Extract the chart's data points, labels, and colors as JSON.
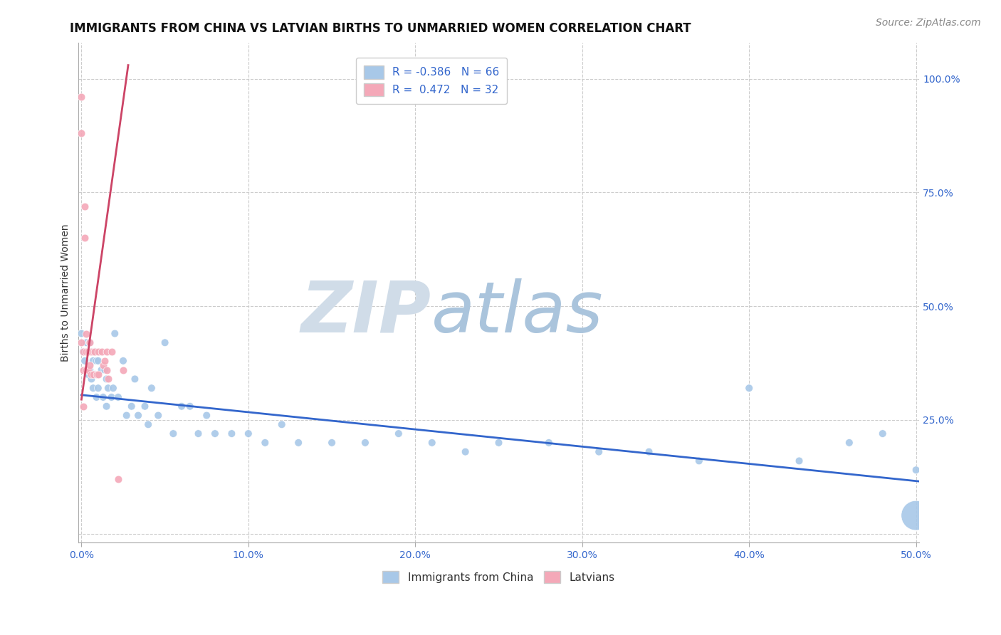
{
  "title": "IMMIGRANTS FROM CHINA VS LATVIAN BIRTHS TO UNMARRIED WOMEN CORRELATION CHART",
  "source_text": "Source: ZipAtlas.com",
  "ylabel": "Births to Unmarried Women",
  "xlim": [
    -0.002,
    0.502
  ],
  "ylim": [
    -0.02,
    1.08
  ],
  "xticks": [
    0.0,
    0.1,
    0.2,
    0.3,
    0.4,
    0.5
  ],
  "xticklabels": [
    "0.0%",
    "10.0%",
    "20.0%",
    "30.0%",
    "40.0%",
    "50.0%"
  ],
  "yticks": [
    0.0,
    0.25,
    0.5,
    0.75,
    1.0
  ],
  "yticklabels_right": [
    "",
    "25.0%",
    "50.0%",
    "75.0%",
    "100.0%"
  ],
  "blue_R": -0.386,
  "blue_N": 66,
  "pink_R": 0.472,
  "pink_N": 32,
  "blue_color": "#a8c8e8",
  "pink_color": "#f4a8b8",
  "blue_line_color": "#3366cc",
  "pink_line_color": "#cc4466",
  "watermark_zip": "ZIP",
  "watermark_atlas": "atlas",
  "watermark_zip_color": "#d0dce8",
  "watermark_atlas_color": "#aac4dc",
  "grid_color": "#cccccc",
  "background_color": "#ffffff",
  "title_fontsize": 12,
  "axis_label_fontsize": 10,
  "tick_fontsize": 10,
  "legend_fontsize": 11,
  "source_fontsize": 10,
  "blue_trend_x": [
    0.0,
    0.502
  ],
  "blue_trend_y": [
    0.305,
    0.115
  ],
  "pink_trend_x": [
    0.0,
    0.028
  ],
  "pink_trend_y": [
    0.295,
    1.03
  ],
  "blue_scatter_x": [
    0.0,
    0.001,
    0.002,
    0.003,
    0.003,
    0.004,
    0.004,
    0.005,
    0.005,
    0.006,
    0.006,
    0.007,
    0.007,
    0.008,
    0.008,
    0.009,
    0.009,
    0.01,
    0.01,
    0.012,
    0.013,
    0.014,
    0.015,
    0.015,
    0.016,
    0.018,
    0.019,
    0.02,
    0.022,
    0.025,
    0.027,
    0.03,
    0.032,
    0.034,
    0.038,
    0.04,
    0.042,
    0.046,
    0.05,
    0.055,
    0.06,
    0.065,
    0.07,
    0.075,
    0.08,
    0.09,
    0.1,
    0.11,
    0.12,
    0.13,
    0.15,
    0.17,
    0.19,
    0.21,
    0.23,
    0.25,
    0.28,
    0.31,
    0.34,
    0.37,
    0.4,
    0.43,
    0.46,
    0.48,
    0.5,
    0.5
  ],
  "blue_scatter_y": [
    0.44,
    0.4,
    0.38,
    0.42,
    0.36,
    0.4,
    0.35,
    0.42,
    0.36,
    0.4,
    0.34,
    0.38,
    0.32,
    0.4,
    0.35,
    0.38,
    0.3,
    0.38,
    0.32,
    0.36,
    0.3,
    0.36,
    0.34,
    0.28,
    0.32,
    0.3,
    0.32,
    0.44,
    0.3,
    0.38,
    0.26,
    0.28,
    0.34,
    0.26,
    0.28,
    0.24,
    0.32,
    0.26,
    0.42,
    0.22,
    0.28,
    0.28,
    0.22,
    0.26,
    0.22,
    0.22,
    0.22,
    0.2,
    0.24,
    0.2,
    0.2,
    0.2,
    0.22,
    0.2,
    0.18,
    0.2,
    0.2,
    0.18,
    0.18,
    0.16,
    0.32,
    0.16,
    0.2,
    0.22,
    0.14,
    0.04
  ],
  "blue_scatter_s": [
    60,
    60,
    60,
    60,
    60,
    60,
    60,
    60,
    60,
    60,
    60,
    60,
    60,
    60,
    60,
    60,
    60,
    60,
    60,
    60,
    60,
    60,
    60,
    60,
    60,
    60,
    60,
    60,
    60,
    60,
    60,
    60,
    60,
    60,
    60,
    60,
    60,
    60,
    60,
    60,
    60,
    60,
    60,
    60,
    60,
    60,
    60,
    60,
    60,
    60,
    60,
    60,
    60,
    60,
    60,
    60,
    60,
    60,
    60,
    60,
    60,
    60,
    60,
    60,
    60,
    900
  ],
  "pink_scatter_x": [
    0.0,
    0.0,
    0.0,
    0.001,
    0.001,
    0.001,
    0.002,
    0.002,
    0.003,
    0.003,
    0.003,
    0.004,
    0.004,
    0.005,
    0.005,
    0.006,
    0.006,
    0.007,
    0.007,
    0.008,
    0.009,
    0.01,
    0.01,
    0.012,
    0.013,
    0.014,
    0.015,
    0.015,
    0.016,
    0.018,
    0.022,
    0.025
  ],
  "pink_scatter_y": [
    0.96,
    0.88,
    0.42,
    0.4,
    0.36,
    0.28,
    0.72,
    0.65,
    0.44,
    0.4,
    0.36,
    0.4,
    0.36,
    0.42,
    0.37,
    0.4,
    0.35,
    0.4,
    0.35,
    0.4,
    0.35,
    0.4,
    0.35,
    0.4,
    0.37,
    0.38,
    0.4,
    0.36,
    0.34,
    0.4,
    0.12,
    0.36
  ]
}
